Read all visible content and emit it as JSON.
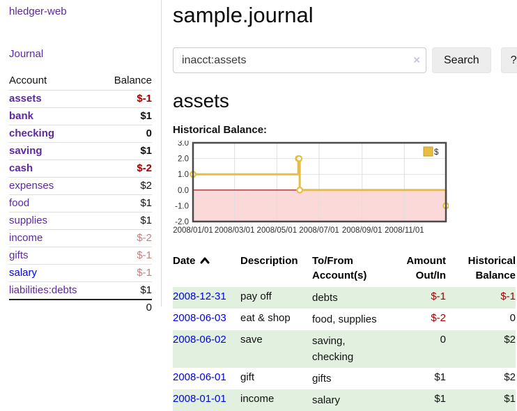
{
  "brand": "hledger-web",
  "nav": {
    "journal": "Journal"
  },
  "sidebar": {
    "headers": {
      "account": "Account",
      "balance": "Balance"
    },
    "rows": [
      {
        "label": "assets",
        "value": "$-1",
        "level": 1,
        "bold": true,
        "label_color": "purple",
        "value_color": "negative-strong"
      },
      {
        "label": "bank",
        "value": "$1",
        "level": 2,
        "bold": true,
        "label_color": "purple",
        "value_color": "normal"
      },
      {
        "label": "checking",
        "value": "0",
        "level": 3,
        "bold": true,
        "label_color": "purple",
        "value_color": "normal"
      },
      {
        "label": "saving",
        "value": "$1",
        "level": 3,
        "bold": true,
        "label_color": "purple",
        "value_color": "normal"
      },
      {
        "label": "cash",
        "value": "$-2",
        "level": 2,
        "bold": true,
        "label_color": "purple",
        "value_color": "negative-strong"
      },
      {
        "label": "expenses",
        "value": "$2",
        "level": 1,
        "bold": false,
        "label_color": "purple",
        "value_color": "normal"
      },
      {
        "label": "food",
        "value": "$1",
        "level": 2,
        "bold": false,
        "label_color": "purple",
        "value_color": "normal"
      },
      {
        "label": "supplies",
        "value": "$1",
        "level": 2,
        "bold": false,
        "label_color": "purple",
        "value_color": "normal"
      },
      {
        "label": "income",
        "value": "$-2",
        "level": 1,
        "bold": false,
        "label_color": "purple",
        "value_color": "negative-soft"
      },
      {
        "label": "gifts",
        "value": "$-1",
        "level": 2,
        "bold": false,
        "label_color": "purple",
        "value_color": "negative-soft"
      },
      {
        "label": "salary",
        "value": "$-1",
        "level": 2,
        "bold": false,
        "label_color": "blue",
        "value_color": "negative-soft"
      },
      {
        "label": "liabilities:debts",
        "value": "$1",
        "level": 1,
        "bold": false,
        "label_color": "purple",
        "value_color": "normal"
      }
    ],
    "total": "0"
  },
  "header": {
    "title": "sample.journal"
  },
  "search": {
    "value": "inacct:assets",
    "placeholder": "",
    "clear_label": "×",
    "button_label": "Search",
    "help_label": "?"
  },
  "account_page": {
    "heading": "assets",
    "chart_title": "Historical Balance:"
  },
  "chart_data": {
    "type": "line",
    "step": true,
    "title": "Historical Balance",
    "xlabel": "",
    "ylabel": "",
    "grid": true,
    "legend_position": "top-right",
    "x_start": "2008-01-01",
    "x_end": "2008-12-31",
    "ylim": [
      -2,
      3
    ],
    "yticks": [
      {
        "v": 3,
        "label": "3.0"
      },
      {
        "v": 2,
        "label": "2.0"
      },
      {
        "v": 1,
        "label": "1.0"
      },
      {
        "v": 0,
        "label": "0.0"
      },
      {
        "v": -1,
        "label": "-1.0"
      },
      {
        "v": -2,
        "label": "-2.0"
      }
    ],
    "xticks": [
      {
        "date": "2008-01-01",
        "label": "2008/01/01"
      },
      {
        "date": "2008-03-01",
        "label": "2008/03/01"
      },
      {
        "date": "2008-05-01",
        "label": "2008/05/01"
      },
      {
        "date": "2008-07-01",
        "label": "2008/07/01"
      },
      {
        "date": "2008-09-01",
        "label": "2008/09/01"
      },
      {
        "date": "2008-11-01",
        "label": "2008/11/01"
      }
    ],
    "series": [
      {
        "name": "$",
        "color": "#e7bd42",
        "points": [
          {
            "date": "2008-01-01",
            "value": 1
          },
          {
            "date": "2008-06-01",
            "value": 2
          },
          {
            "date": "2008-06-02",
            "value": 2
          },
          {
            "date": "2008-06-03",
            "value": 0
          },
          {
            "date": "2008-12-31",
            "value": -1
          }
        ]
      }
    ],
    "negative_region_color": "#fbd9d9",
    "zero_line_color": "#990000"
  },
  "register": {
    "headers": {
      "date": "Date",
      "description": "Description",
      "accounts": "To/From\nAccount(s)",
      "amount": "Amount\nOut/In",
      "balance": "Historical\nBalance"
    },
    "sort": "date-ascending",
    "rows": [
      {
        "date": "2008-12-31",
        "description": "pay off",
        "accounts": "debts",
        "amount": "$-1",
        "amount_negative": true,
        "balance": "$-1",
        "balance_negative": true
      },
      {
        "date": "2008-06-03",
        "description": "eat & shop",
        "accounts": "food, supplies",
        "amount": "$-2",
        "amount_negative": true,
        "balance": "0",
        "balance_negative": false
      },
      {
        "date": "2008-06-02",
        "description": "save",
        "accounts": "saving,\nchecking",
        "amount": "0",
        "amount_negative": false,
        "balance": "$2",
        "balance_negative": false
      },
      {
        "date": "2008-06-01",
        "description": "gift",
        "accounts": "gifts",
        "amount": "$1",
        "amount_negative": false,
        "balance": "$2",
        "balance_negative": false
      },
      {
        "date": "2008-01-01",
        "description": "income",
        "accounts": "salary",
        "amount": "$1",
        "amount_negative": false,
        "balance": "$1",
        "balance_negative": false
      }
    ]
  },
  "colors": {
    "purple": "#5b2a9d",
    "link_blue": "#0000ee",
    "negative_strong": "#a40000",
    "negative_soft": "#c08080",
    "row_stripe_green": "#e1f0df",
    "chart_gold": "#e7bd42",
    "chart_negative_pink": "#fbd9d9",
    "chart_zero_line": "#990000"
  }
}
